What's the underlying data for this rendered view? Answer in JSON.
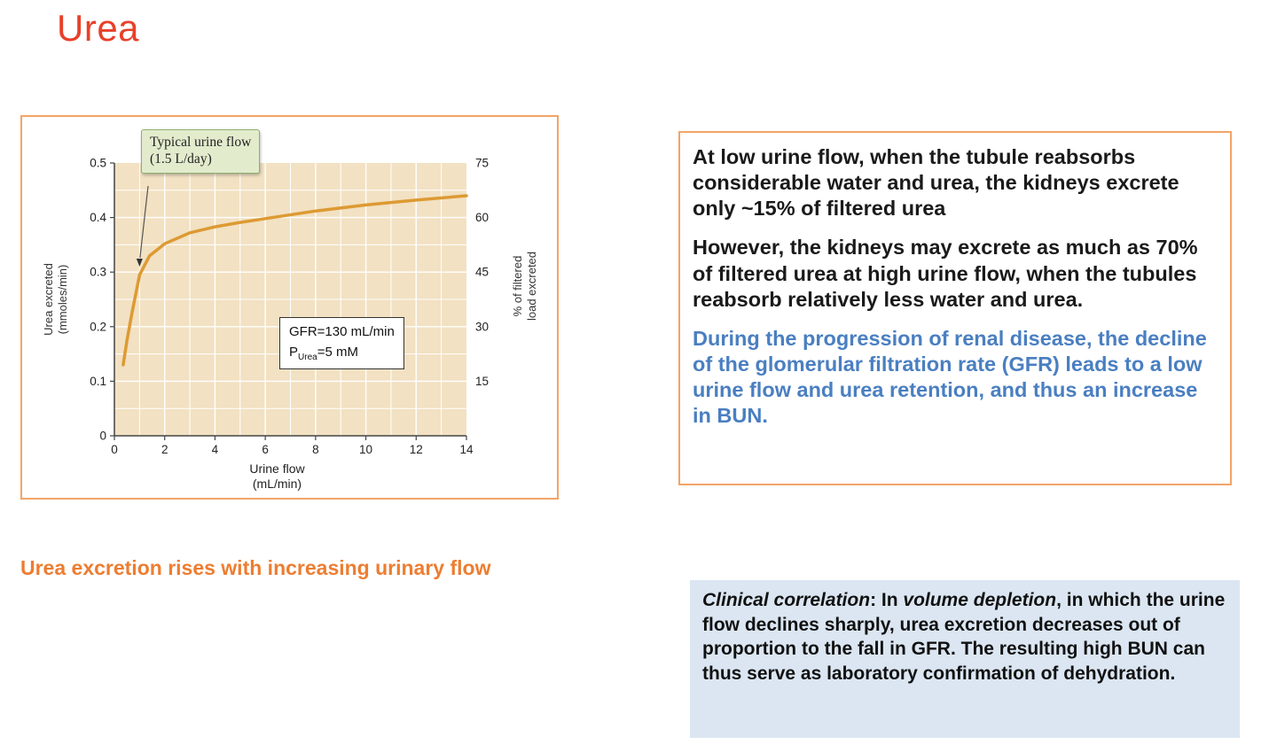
{
  "slide": {
    "title": "Urea",
    "caption": "Urea excretion rises with increasing urinary flow"
  },
  "colors": {
    "title_red": "#e8402a",
    "caption_orange": "#ed7d31",
    "panel_border": "#f2a467",
    "info_blue": "#4a7fc1",
    "clinical_bg": "#dbe6f2",
    "curve_orange": "#dd9a33",
    "plot_bg": "#f2e1c2",
    "callout_bg": "#e2eccd",
    "callout_border": "#8fae6f"
  },
  "chart_data": {
    "type": "line",
    "title": "",
    "xlabel": [
      "Urine flow",
      "(mL/min)"
    ],
    "ylabel_left": [
      "Urea excreted",
      "(mmoles/min)"
    ],
    "ylabel_right": [
      "% of filtered",
      "load excreted"
    ],
    "xlim": [
      0,
      14
    ],
    "ylim_left": [
      0,
      0.5
    ],
    "ylim_right": [
      0,
      75
    ],
    "xticks": [
      "0",
      "2",
      "4",
      "6",
      "8",
      "10",
      "12",
      "14"
    ],
    "yticks_left": [
      "0",
      "0.1",
      "0.2",
      "0.3",
      "0.4",
      "0.5"
    ],
    "yticks_right": [
      "15",
      "30",
      "45",
      "60",
      "75"
    ],
    "grid": true,
    "legend": "none",
    "series": [
      {
        "name": "urea excretion vs urine flow",
        "x": [
          0.35,
          0.5,
          0.7,
          1.0,
          1.4,
          2,
          3,
          4,
          5,
          6,
          8,
          10,
          12,
          14
        ],
        "y": [
          0.13,
          0.175,
          0.225,
          0.295,
          0.33,
          0.352,
          0.372,
          0.383,
          0.391,
          0.398,
          0.412,
          0.423,
          0.432,
          0.44
        ]
      }
    ],
    "annotations": [
      {
        "id": "typical-urine-flow",
        "lines": [
          "Typical urine flow",
          "(1.5 L/day)"
        ],
        "target_x": 1,
        "target_y": 0.31
      },
      {
        "id": "parameters",
        "line1": "GFR=130 mL/min",
        "line2_pre": "P",
        "line2_sub": "Urea",
        "line2_post": "=5 mM"
      }
    ]
  },
  "info_box": {
    "paragraphs": [
      {
        "text": "At low urine flow, when the tubule reabsorbs considerable water and urea, the kidneys excrete only ~15% of filtered urea",
        "color": "#1a1a1a"
      },
      {
        "text": "However, the kidneys may excrete as much as 70% of filtered urea at high urine flow, when the tubules reabsorb relatively less water and urea.",
        "color": "#1a1a1a"
      },
      {
        "text": "During the progression of renal disease, the decline of the glomerular filtration rate (GFR) leads to a low urine flow and urea retention, and thus an increase in BUN.",
        "color": "#4a7fc1"
      }
    ]
  },
  "clinical_box": {
    "segments": [
      {
        "text": "Clinical correlation",
        "style": "bold-italic"
      },
      {
        "text": ": In ",
        "style": "normal"
      },
      {
        "text": "volume depletion",
        "style": "italic"
      },
      {
        "text": ", in which the urine flow declines sharply, urea excretion decreases out of proportion to the fall in GFR. The resulting high BUN can thus serve as laboratory confirmation of dehydration.",
        "style": "normal"
      }
    ]
  }
}
